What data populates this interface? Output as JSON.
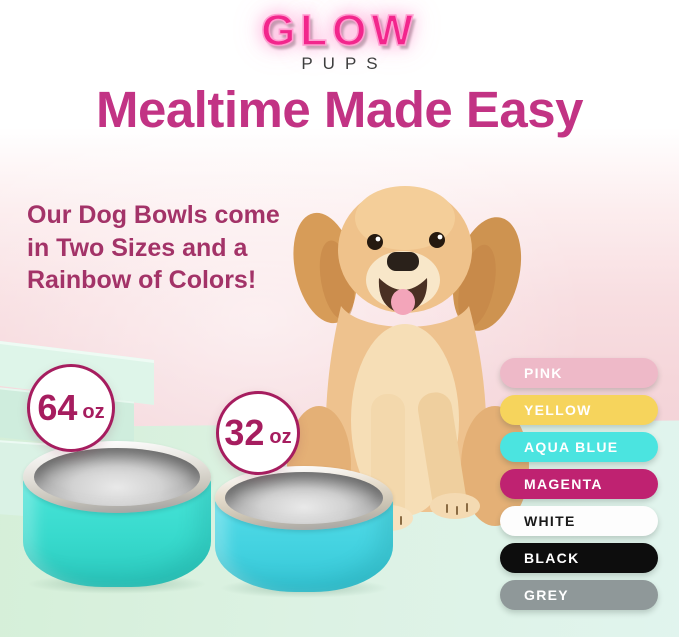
{
  "brand": {
    "name": "GLOW",
    "sub": "PUPS"
  },
  "headline": "Mealtime Made Easy",
  "tagline_lines": [
    "Our Dog Bowls come",
    "in Two Sizes and a",
    "Rainbow of Colors!"
  ],
  "sizes": [
    {
      "value": "64",
      "unit": "oz"
    },
    {
      "value": "32",
      "unit": "oz"
    }
  ],
  "colors": [
    {
      "label": "PINK",
      "hex": "#eeb9c8",
      "text": "#ffffff"
    },
    {
      "label": "YELLOW",
      "hex": "#f6d45c",
      "text": "#ffffff"
    },
    {
      "label": "AQUA BLUE",
      "hex": "#4be4e0",
      "text": "#ffffff"
    },
    {
      "label": "MAGENTA",
      "hex": "#bf2271",
      "text": "#ffffff"
    },
    {
      "label": "WHITE",
      "hex": "#fdfdfd",
      "text": "#1a1a1a"
    },
    {
      "label": "BLACK",
      "hex": "#0d0d0d",
      "text": "#ffffff"
    },
    {
      "label": "GREY",
      "hex": "#8f9899",
      "text": "#ffffff"
    }
  ],
  "theme": {
    "headline_color": "#c23384",
    "tagline_color": "#a33368",
    "badge_color": "#a61d5f",
    "logo_pink": "#f2268c",
    "bg_pink": "#f3d2d7",
    "floor_mint": "#d8f0dd",
    "bowl_teal_large": "#3bdcd0",
    "bowl_teal_small": "#48d5e4"
  }
}
